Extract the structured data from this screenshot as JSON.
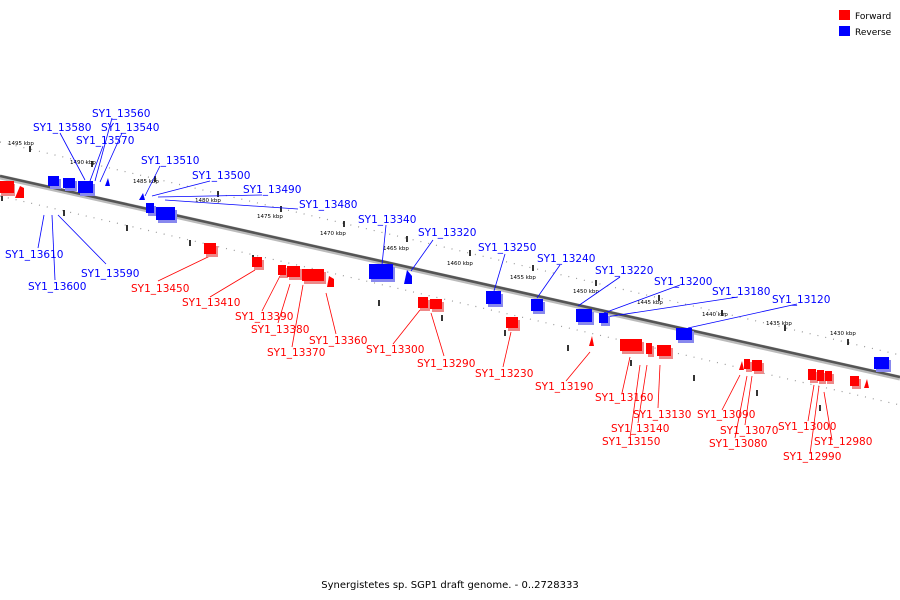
{
  "colors": {
    "forward": "#ff0000",
    "reverse": "#0000ff",
    "backbone": "#666666"
  },
  "legend": {
    "forward_label": "Forward",
    "reverse_label": "Reverse"
  },
  "caption": "Synergistetes sp. SGP1 draft genome. - 0..2728333",
  "kbp_ticks": [
    "1495 kbp",
    "1490 kbp",
    "1485 kbp",
    "1480 kbp",
    "1475 kbp",
    "1470 kbp",
    "1465 kbp",
    "1460 kbp",
    "1455 kbp",
    "1450 kbp",
    "1445 kbp",
    "1440 kbp",
    "1435 kbp",
    "1430 kbp"
  ],
  "reverse_genes": [
    "SY1_13580",
    "SY1_13560",
    "SY1_13540",
    "SY1_13570",
    "SY1_13510",
    "SY1_13500",
    "SY1_13490",
    "SY1_13480",
    "SY1_13340",
    "SY1_13320",
    "SY1_13250",
    "SY1_13240",
    "SY1_13220",
    "SY1_13200",
    "SY1_13180",
    "SY1_13120",
    "SY1_13610",
    "SY1_13590",
    "SY1_13600"
  ],
  "forward_genes": [
    "SY1_13450",
    "SY1_13410",
    "SY1_13390",
    "SY1_13380",
    "SY1_13370",
    "SY1_13360",
    "SY1_13300",
    "SY1_13290",
    "SY1_13230",
    "SY1_13190",
    "SY1_13160",
    "SY1_13130",
    "SY1_13140",
    "SY1_13150",
    "SY1_13090",
    "SY1_13070",
    "SY1_13080",
    "SY1_13000",
    "SY1_12980",
    "SY1_12990"
  ]
}
